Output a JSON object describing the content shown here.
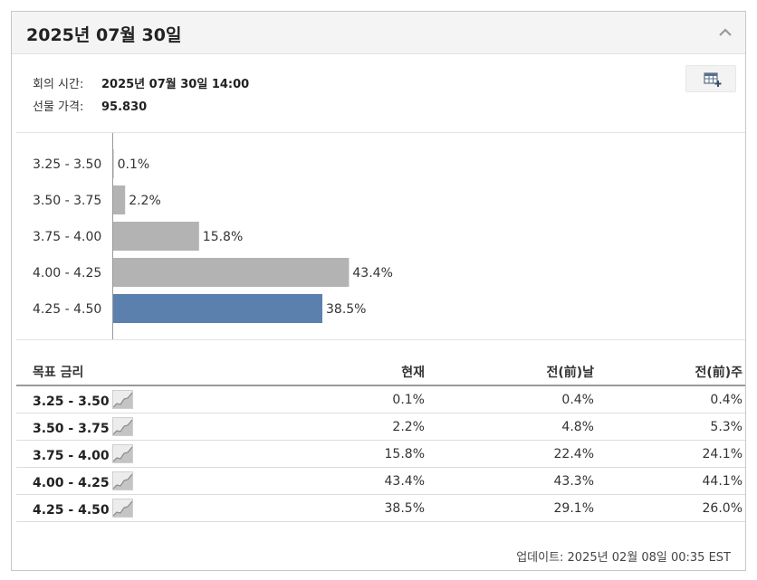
{
  "header": {
    "title": "2025년 07월 30일"
  },
  "meeting": {
    "time_label": "회의 시간:",
    "time_value": "2025년 07월 30일 14:00",
    "price_label": "선물 가격:",
    "price_value": "95.830"
  },
  "colors": {
    "bar_default": "#b3b3b3",
    "bar_current": "#5b80ad"
  },
  "icons": {
    "collapse": "chevron-up-icon",
    "table": "table-add-icon",
    "sparkline": "sparkline-icon"
  },
  "chart_data": {
    "type": "bar",
    "orientation": "horizontal",
    "categories": [
      "3.25 - 3.50",
      "3.50 - 3.75",
      "3.75 - 4.00",
      "4.00 - 4.25",
      "4.25 - 4.50"
    ],
    "values": [
      0.1,
      2.2,
      15.8,
      43.4,
      38.5
    ],
    "value_labels": [
      "0.1%",
      "2.2%",
      "15.8%",
      "43.4%",
      "38.5%"
    ],
    "highlight_index": 4,
    "xlim": [
      0,
      100
    ]
  },
  "table": {
    "headers": {
      "target": "목표 금리",
      "now": "현재",
      "prev_day": "전(前)날",
      "prev_week": "전(前)주"
    },
    "rows": [
      {
        "range": "3.25 - 3.50",
        "now": "0.1%",
        "prev_day": "0.4%",
        "prev_week": "0.4%"
      },
      {
        "range": "3.50 - 3.75",
        "now": "2.2%",
        "prev_day": "4.8%",
        "prev_week": "5.3%"
      },
      {
        "range": "3.75 - 4.00",
        "now": "15.8%",
        "prev_day": "22.4%",
        "prev_week": "24.1%"
      },
      {
        "range": "4.00 - 4.25",
        "now": "43.4%",
        "prev_day": "43.3%",
        "prev_week": "44.1%"
      },
      {
        "range": "4.25 - 4.50",
        "now": "38.5%",
        "prev_day": "29.1%",
        "prev_week": "26.0%"
      }
    ]
  },
  "footer": {
    "updated": "업데이트: 2025년 02월 08일 00:35 EST"
  }
}
